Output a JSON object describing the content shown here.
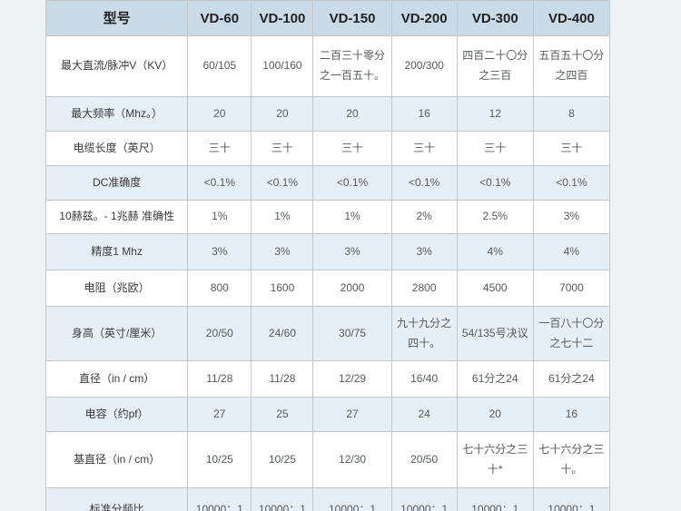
{
  "page": {
    "background_color": "#f0f1f2"
  },
  "table": {
    "colors": {
      "header_bg": "#c8dbe6",
      "row_bg": "#ffffff",
      "row_alt_bg": "#e7eff6",
      "border": "#c2c6c9",
      "header_text": "#222222",
      "label_text": "#3a3a3a",
      "value_text": "#555a5e"
    },
    "header": [
      "型号",
      "VD-60",
      "VD-100",
      "VD-150",
      "VD-200",
      "VD-300",
      "VD-400"
    ],
    "rows": [
      {
        "label": "最大直流/脉冲V（KV）",
        "values": [
          "60/105",
          "100/160",
          "二百三十零分之一百五十。",
          "200/300",
          "四百二十〇分之三百",
          "五百五十〇分之四百"
        ]
      },
      {
        "label": "最大频率（Mhz。）",
        "values": [
          "20",
          "20",
          "20",
          "16",
          "12",
          "8"
        ]
      },
      {
        "label": "电缆长度（英尺）",
        "values": [
          "三十",
          "三十",
          "三十",
          "三十",
          "三十",
          "三十"
        ]
      },
      {
        "label": "DC准确度",
        "values": [
          "<0.1%",
          "<0.1%",
          "<0.1%",
          "<0.1%",
          "<0.1%",
          "<0.1%"
        ]
      },
      {
        "label": "10赫兹。- 1兆赫 准确性",
        "values": [
          "1%",
          "1%",
          "1%",
          "2%",
          "2.5%",
          "3%"
        ]
      },
      {
        "label": "精度1 Mhz",
        "values": [
          "3%",
          "3%",
          "3%",
          "3%",
          "4%",
          "4%"
        ]
      },
      {
        "label": "电阻（兆欧）",
        "values": [
          "800",
          "1600",
          "2000",
          "2800",
          "4500",
          "7000"
        ]
      },
      {
        "label": "身高（英寸/厘米）",
        "values": [
          "20/50",
          "24/60",
          "30/75",
          "九十九分之四十。",
          "54/135号决议",
          "一百八十〇分之七十二"
        ]
      },
      {
        "label": "直径（in / cm）",
        "values": [
          "11/28",
          "11/28",
          "12/29",
          "16/40",
          "61分之24",
          "61分之24"
        ]
      },
      {
        "label": "电容（约pf）",
        "values": [
          "27",
          "25",
          "27",
          "24",
          "20",
          "16"
        ]
      },
      {
        "label": "基直径（in / cm）",
        "values": [
          "10/25",
          "10/25",
          "12/30",
          "20/50",
          "七十六分之三十*",
          "七十六分之三十。"
        ]
      },
      {
        "label": "标准分频比",
        "values": [
          "10000：1",
          "10000：1",
          "10000：1",
          "10000：1",
          "10000：1",
          "10000：1"
        ]
      }
    ]
  }
}
